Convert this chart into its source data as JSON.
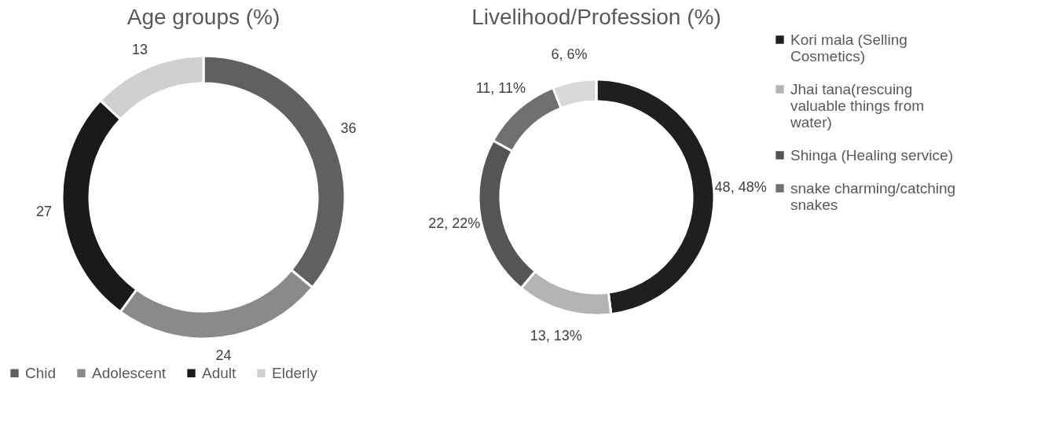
{
  "chart_data": [
    {
      "type": "donut",
      "title": "Age groups (%)",
      "categories": [
        "Chid",
        "Adolescent",
        "Adult",
        "Elderly"
      ],
      "values": [
        36,
        24,
        27,
        13
      ],
      "colors": [
        "#606060",
        "#8a8a8a",
        "#1a1a1a",
        "#d0d0d0"
      ],
      "data_labels": true,
      "legend": "bottom"
    },
    {
      "type": "donut",
      "title": "Livelihood/Profession (%)",
      "categories": [
        " Kori mala (Selling Cosmetics)",
        "Jhai tana(rescuing valuable things from water)",
        "Shinga (Healing service)",
        "snake charming/catching snakes",
        null
      ],
      "values": [
        48,
        13,
        22,
        11,
        6
      ],
      "colors": [
        "#1f1f1f",
        "#b4b4b4",
        "#555555",
        "#707070",
        "#d8d8d8"
      ],
      "value_labels": [
        "48, 48%",
        "13, 13%",
        "22, 22%",
        "11, 11%",
        "6, 6%"
      ],
      "legend": "right"
    }
  ]
}
